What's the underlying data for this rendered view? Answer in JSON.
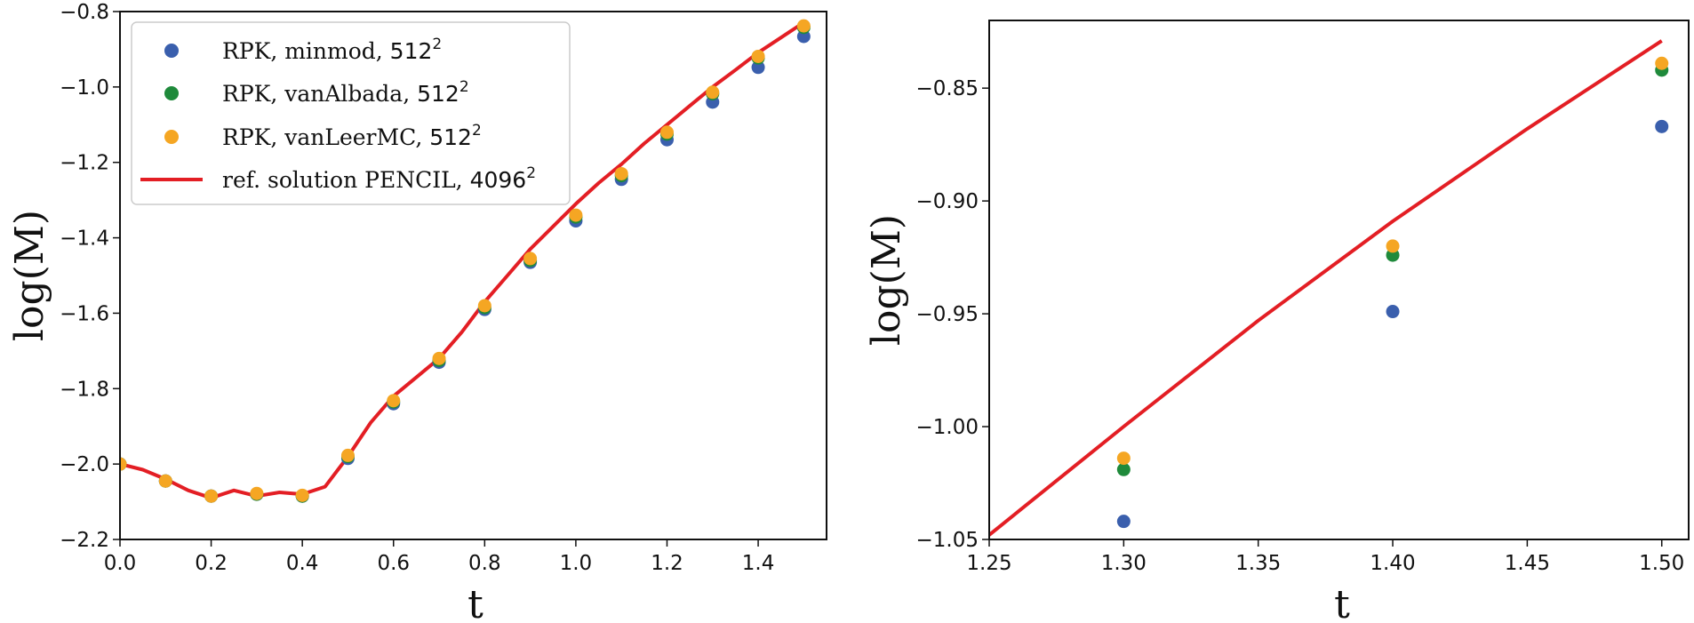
{
  "colors": {
    "minmod": "#3a5fad",
    "vanAlbada": "#1f8a3b",
    "vanLeerMC": "#f5a623",
    "reference": "#e31e24"
  },
  "legend": {
    "items": [
      {
        "name": "RPK, minmod, ",
        "res": "512",
        "exp": "2"
      },
      {
        "name": "RPK, vanAlbada, ",
        "res": "512",
        "exp": "2"
      },
      {
        "name": "RPK, vanLeerMC, ",
        "res": "512",
        "exp": "2"
      },
      {
        "name": "ref. solution PENCIL, ",
        "res": "4096",
        "exp": "2"
      }
    ]
  },
  "chart_data": [
    {
      "type": "scatter+line",
      "xlabel": "t",
      "ylabel": "log(M)",
      "xlim": [
        0.0,
        1.55
      ],
      "ylim": [
        -2.2,
        -0.8
      ],
      "xticks": [
        "0.0",
        "0.2",
        "0.4",
        "0.6",
        "0.8",
        "1.0",
        "1.2",
        "1.4"
      ],
      "xtick_values": [
        0.0,
        0.2,
        0.4,
        0.6,
        0.8,
        1.0,
        1.2,
        1.4
      ],
      "yticks": [
        "−2.2",
        "−2.0",
        "−1.8",
        "−1.6",
        "−1.4",
        "−1.2",
        "−1.0",
        "−0.8"
      ],
      "ytick_values": [
        -2.2,
        -2.0,
        -1.8,
        -1.6,
        -1.4,
        -1.2,
        -1.0,
        -0.8
      ],
      "legend_position": "top-left",
      "series": [
        {
          "name": "RPK, minmod, 512^2",
          "kind": "scatter",
          "color_key": "minmod",
          "x": [
            0.0,
            0.1,
            0.2,
            0.3,
            0.4,
            0.5,
            0.6,
            0.7,
            0.8,
            0.9,
            1.0,
            1.1,
            1.2,
            1.3,
            1.4,
            1.5
          ],
          "y": [
            -2.0,
            -2.045,
            -2.085,
            -2.08,
            -2.085,
            -1.985,
            -1.84,
            -1.73,
            -1.59,
            -1.465,
            -1.355,
            -1.245,
            -1.14,
            -1.04,
            -0.948,
            -0.866
          ]
        },
        {
          "name": "RPK, vanAlbada, 512^2",
          "kind": "scatter",
          "color_key": "vanAlbada",
          "x": [
            0.0,
            0.1,
            0.2,
            0.3,
            0.4,
            0.5,
            0.6,
            0.7,
            0.8,
            0.9,
            1.0,
            1.1,
            1.2,
            1.3,
            1.4,
            1.5
          ],
          "y": [
            -2.0,
            -2.045,
            -2.085,
            -2.08,
            -2.085,
            -1.98,
            -1.835,
            -1.725,
            -1.585,
            -1.46,
            -1.345,
            -1.235,
            -1.125,
            -1.018,
            -0.923,
            -0.842
          ]
        },
        {
          "name": "RPK, vanLeerMC, 512^2",
          "kind": "scatter",
          "color_key": "vanLeerMC",
          "x": [
            0.0,
            0.1,
            0.2,
            0.3,
            0.4,
            0.5,
            0.6,
            0.7,
            0.8,
            0.9,
            1.0,
            1.1,
            1.2,
            1.3,
            1.4,
            1.5
          ],
          "y": [
            -2.0,
            -2.045,
            -2.085,
            -2.078,
            -2.083,
            -1.977,
            -1.832,
            -1.72,
            -1.58,
            -1.455,
            -1.34,
            -1.23,
            -1.12,
            -1.014,
            -0.919,
            -0.838
          ]
        },
        {
          "name": "ref. solution PENCIL, 4096^2",
          "kind": "line",
          "color_key": "reference",
          "x": [
            0.0,
            0.05,
            0.1,
            0.15,
            0.2,
            0.25,
            0.3,
            0.35,
            0.4,
            0.45,
            0.5,
            0.55,
            0.6,
            0.65,
            0.7,
            0.75,
            0.8,
            0.85,
            0.9,
            0.95,
            1.0,
            1.05,
            1.1,
            1.15,
            1.2,
            1.25,
            1.3,
            1.35,
            1.4,
            1.45,
            1.5
          ],
          "y": [
            -2.0,
            -2.015,
            -2.04,
            -2.07,
            -2.09,
            -2.07,
            -2.085,
            -2.075,
            -2.08,
            -2.06,
            -1.98,
            -1.89,
            -1.82,
            -1.77,
            -1.72,
            -1.65,
            -1.57,
            -1.5,
            -1.43,
            -1.37,
            -1.31,
            -1.255,
            -1.205,
            -1.15,
            -1.1,
            -1.05,
            -1.0,
            -0.955,
            -0.909,
            -0.869,
            -0.829
          ]
        }
      ]
    },
    {
      "type": "scatter+line",
      "xlabel": "t",
      "ylabel": "log(M)",
      "xlim": [
        1.25,
        1.51
      ],
      "ylim": [
        -1.05,
        -0.82
      ],
      "xticks": [
        "1.25",
        "1.30",
        "1.35",
        "1.40",
        "1.45",
        "1.50"
      ],
      "xtick_values": [
        1.25,
        1.3,
        1.35,
        1.4,
        1.45,
        1.5
      ],
      "yticks": [
        "−1.05",
        "−1.00",
        "−0.95",
        "−0.90",
        "−0.85"
      ],
      "ytick_values": [
        -1.05,
        -1.0,
        -0.95,
        -0.9,
        -0.85
      ],
      "series": [
        {
          "name": "RPK, minmod, 512^2",
          "kind": "scatter",
          "color_key": "minmod",
          "x": [
            1.3,
            1.4,
            1.5
          ],
          "y": [
            -1.042,
            -0.949,
            -0.867
          ]
        },
        {
          "name": "RPK, vanAlbada, 512^2",
          "kind": "scatter",
          "color_key": "vanAlbada",
          "x": [
            1.3,
            1.4,
            1.5
          ],
          "y": [
            -1.019,
            -0.924,
            -0.842
          ]
        },
        {
          "name": "RPK, vanLeerMC, 512^2",
          "kind": "scatter",
          "color_key": "vanLeerMC",
          "x": [
            1.3,
            1.4,
            1.5
          ],
          "y": [
            -1.014,
            -0.92,
            -0.839
          ]
        },
        {
          "name": "ref. solution PENCIL, 4096^2",
          "kind": "line",
          "color_key": "reference",
          "x": [
            1.25,
            1.3,
            1.35,
            1.4,
            1.45,
            1.5
          ],
          "y": [
            -1.048,
            -1.0,
            -0.953,
            -0.909,
            -0.868,
            -0.829
          ]
        }
      ]
    }
  ]
}
